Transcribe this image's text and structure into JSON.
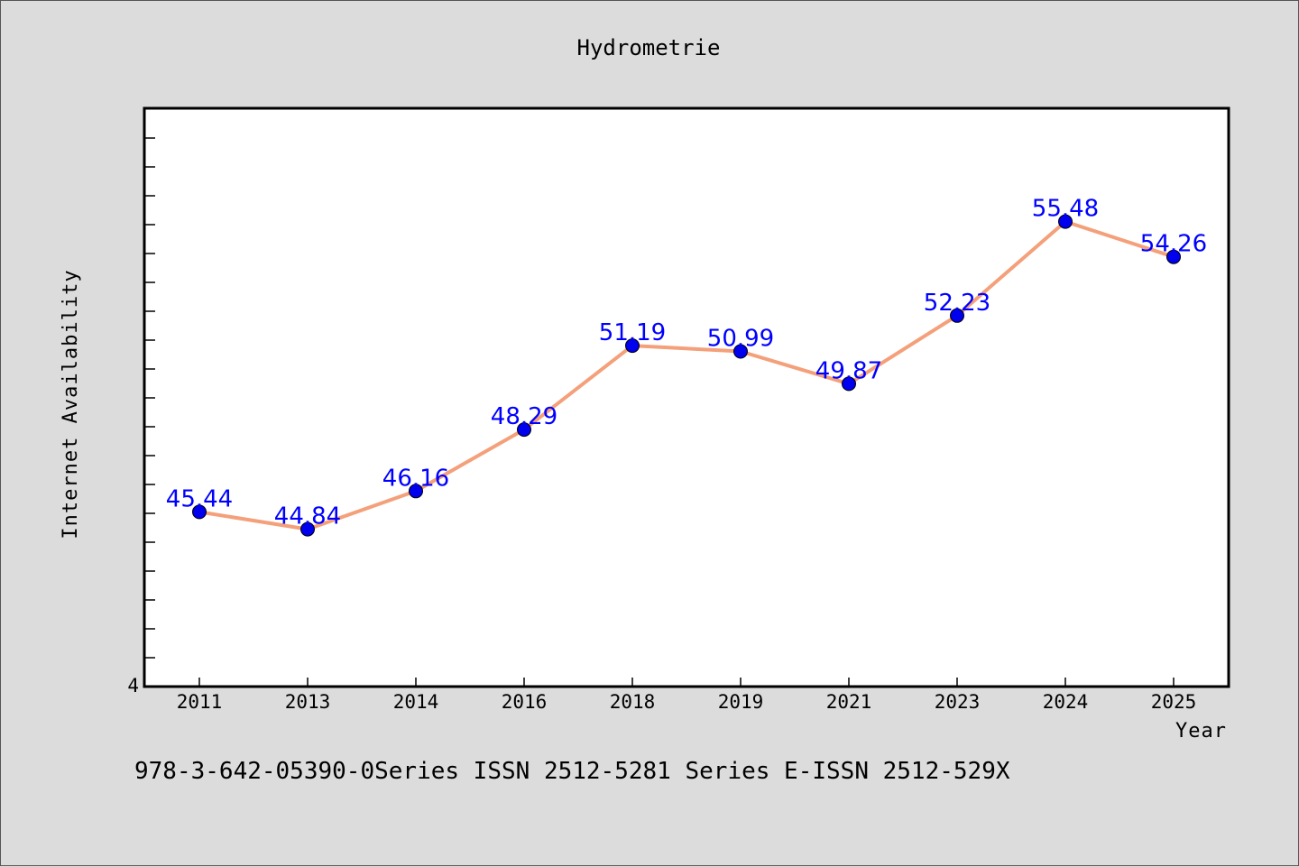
{
  "chart_data": {
    "type": "line",
    "title": "Hydrometrie",
    "xlabel": "Year",
    "ylabel": "Internet Availability",
    "categories": [
      "2011",
      "2013",
      "2014",
      "2016",
      "2018",
      "2019",
      "2021",
      "2023",
      "2024",
      "2025"
    ],
    "series": [
      {
        "values": [
          45.44,
          44.84,
          46.16,
          48.29,
          51.19,
          50.99,
          49.87,
          52.23,
          55.48,
          54.26
        ],
        "line_color": "#f4a07a",
        "marker_color": "#0000ee"
      }
    ],
    "data_labels": [
      "45.44",
      "44.84",
      "46.16",
      "48.29",
      "51.19",
      "50.99",
      "49.87",
      "52.23",
      "55.48",
      "54.26"
    ],
    "ylim": [
      39.4,
      59.4
    ],
    "y_tick_labels": [
      "4"
    ],
    "grid": false,
    "legend": "none"
  },
  "footer": {
    "text": "978-3-642-05390-0Series ISSN 2512-5281 Series E-ISSN 2512-529X"
  }
}
